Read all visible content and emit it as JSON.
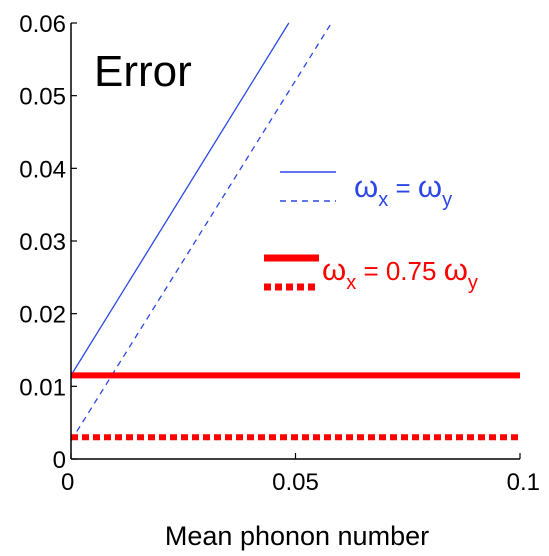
{
  "chart_data": {
    "type": "line",
    "title": "Error",
    "xlabel": "Mean phonon number",
    "ylabel": "",
    "xlim": [
      0,
      0.1
    ],
    "ylim": [
      0,
      0.06
    ],
    "xticks": [
      0,
      0.05,
      0.1
    ],
    "xtick_labels": [
      "0",
      "0.05",
      "0.1"
    ],
    "yticks": [
      0,
      0.01,
      0.02,
      0.03,
      0.04,
      0.05,
      0.06
    ],
    "ytick_labels": [
      "0",
      "0.01",
      "0.02",
      "0.03",
      "0.04",
      "0.05",
      "0.06"
    ],
    "grid": false,
    "series": [
      {
        "key": "blue-solid",
        "x": [
          0,
          0.0485
        ],
        "y": [
          0.0115,
          0.06
        ],
        "color": "#2b47e6",
        "style": "solid",
        "weight": "thin"
      },
      {
        "key": "blue-dashed",
        "x": [
          0,
          0.058
        ],
        "y": [
          0.0025,
          0.06
        ],
        "color": "#2b47e6",
        "style": "dashed",
        "weight": "thin"
      },
      {
        "key": "red-solid",
        "x": [
          0,
          0.1
        ],
        "y": [
          0.0115,
          0.0115
        ],
        "color": "#ff0000",
        "style": "solid",
        "weight": "thick"
      },
      {
        "key": "red-dotted",
        "x": [
          0,
          0.1
        ],
        "y": [
          0.003,
          0.003
        ],
        "color": "#ff0000",
        "style": "dotted",
        "weight": "thick"
      }
    ],
    "legend": [
      {
        "label": "ωx = ωy",
        "color": "#2b47e6",
        "entries": [
          "solid",
          "dashed"
        ],
        "position": "middle-right"
      },
      {
        "label": "ωx = 0.75 ωy",
        "color": "#ff0000",
        "entries": [
          "solid",
          "dotted"
        ],
        "position": "middle-right"
      }
    ]
  }
}
